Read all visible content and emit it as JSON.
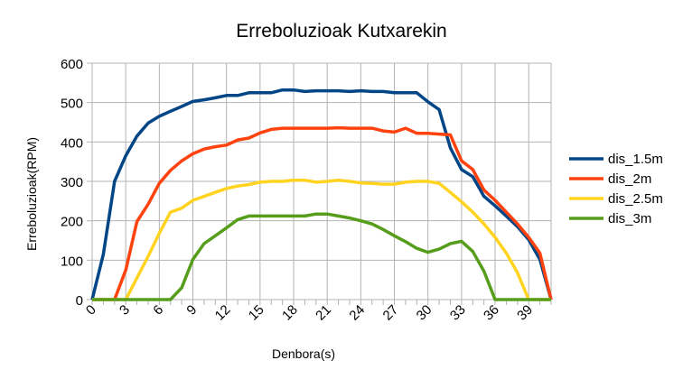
{
  "chart_data": {
    "type": "line",
    "title": "Erreboluzioak Kutxarekin",
    "xlabel": "Denbora(s)",
    "ylabel": "Erreboluzioak(RPM)",
    "xlim": [
      0,
      41
    ],
    "ylim": [
      0,
      600
    ],
    "x_ticks": [
      "0",
      "3",
      "6",
      "9",
      "12",
      "15",
      "18",
      "21",
      "24",
      "27",
      "30",
      "33",
      "36",
      "39"
    ],
    "y_ticks": [
      "0",
      "100",
      "200",
      "300",
      "400",
      "500",
      "600"
    ],
    "grid": true,
    "legend_position": "right",
    "x": [
      0,
      1,
      2,
      3,
      4,
      5,
      6,
      7,
      8,
      9,
      10,
      11,
      12,
      13,
      14,
      15,
      16,
      17,
      18,
      19,
      20,
      21,
      22,
      23,
      24,
      25,
      26,
      27,
      28,
      29,
      30,
      31,
      32,
      33,
      34,
      35,
      36,
      37,
      38,
      39,
      40,
      41
    ],
    "series": [
      {
        "name": "dis_1.5m",
        "color": "#004586",
        "values": [
          0,
          115,
          300,
          365,
          415,
          448,
          465,
          478,
          490,
          503,
          507,
          512,
          518,
          518,
          525,
          525,
          525,
          532,
          532,
          528,
          530,
          530,
          530,
          528,
          530,
          528,
          528,
          525,
          525,
          525,
          502,
          482,
          385,
          330,
          312,
          262,
          238,
          212,
          185,
          152,
          102,
          0
        ]
      },
      {
        "name": "dis_2m",
        "color": "#ff420e",
        "values": [
          0,
          0,
          0,
          75,
          198,
          242,
          295,
          328,
          352,
          370,
          382,
          388,
          392,
          405,
          410,
          423,
          432,
          435,
          435,
          435,
          435,
          435,
          436,
          435,
          435,
          435,
          428,
          425,
          435,
          422,
          422,
          420,
          418,
          352,
          330,
          278,
          252,
          222,
          192,
          158,
          118,
          0
        ]
      },
      {
        "name": "dis_2.5m",
        "color": "#ffd320",
        "values": [
          0,
          0,
          0,
          0,
          55,
          110,
          168,
          222,
          232,
          252,
          262,
          272,
          282,
          288,
          292,
          298,
          300,
          300,
          303,
          303,
          298,
          300,
          303,
          300,
          296,
          295,
          293,
          293,
          298,
          300,
          300,
          295,
          272,
          248,
          222,
          192,
          158,
          118,
          68,
          0,
          0,
          0
        ]
      },
      {
        "name": "dis_3m",
        "color": "#579d1c",
        "values": [
          0,
          0,
          0,
          0,
          0,
          0,
          0,
          0,
          30,
          102,
          142,
          162,
          182,
          203,
          212,
          212,
          212,
          212,
          212,
          212,
          217,
          217,
          212,
          207,
          200,
          192,
          178,
          162,
          147,
          130,
          120,
          128,
          142,
          148,
          122,
          72,
          0,
          0,
          0,
          0,
          0,
          0
        ]
      }
    ]
  }
}
